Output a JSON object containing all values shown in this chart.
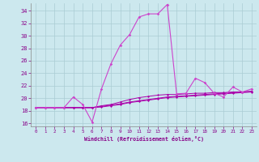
{
  "xlabel": "Windchill (Refroidissement éolien,°C)",
  "xlim": [
    -0.5,
    23.5
  ],
  "ylim": [
    15.5,
    35.2
  ],
  "yticks": [
    16,
    18,
    20,
    22,
    24,
    26,
    28,
    30,
    32,
    34
  ],
  "xticks": [
    0,
    1,
    2,
    3,
    4,
    5,
    6,
    7,
    8,
    9,
    10,
    11,
    12,
    13,
    14,
    15,
    16,
    17,
    18,
    19,
    20,
    21,
    22,
    23
  ],
  "bg_color": "#cce8ee",
  "grid_color": "#aaccd4",
  "line_color1": "#aa00aa",
  "line_color2": "#cc44cc",
  "series1": [
    18.5,
    18.5,
    18.5,
    18.5,
    20.2,
    19.0,
    16.2,
    21.5,
    25.5,
    28.5,
    30.2,
    33.0,
    33.5,
    33.5,
    35.0,
    20.7,
    20.8,
    23.2,
    22.5,
    20.8,
    20.2,
    21.8,
    21.0,
    21.5
  ],
  "series2": [
    18.5,
    18.5,
    18.5,
    18.5,
    18.5,
    18.5,
    18.5,
    18.8,
    19.0,
    19.4,
    19.8,
    20.1,
    20.3,
    20.5,
    20.6,
    20.6,
    20.7,
    20.8,
    20.8,
    20.9,
    20.9,
    21.0,
    21.0,
    21.1
  ],
  "series3": [
    18.5,
    18.5,
    18.5,
    18.5,
    18.5,
    18.5,
    18.5,
    18.7,
    18.9,
    19.1,
    19.4,
    19.6,
    19.8,
    20.0,
    20.2,
    20.3,
    20.4,
    20.5,
    20.6,
    20.7,
    20.8,
    20.9,
    21.0,
    21.1
  ],
  "series4": [
    18.5,
    18.5,
    18.5,
    18.5,
    18.5,
    18.5,
    18.5,
    18.6,
    18.8,
    19.0,
    19.3,
    19.5,
    19.7,
    19.9,
    20.1,
    20.2,
    20.3,
    20.4,
    20.5,
    20.6,
    20.7,
    20.8,
    20.9,
    21.0
  ]
}
